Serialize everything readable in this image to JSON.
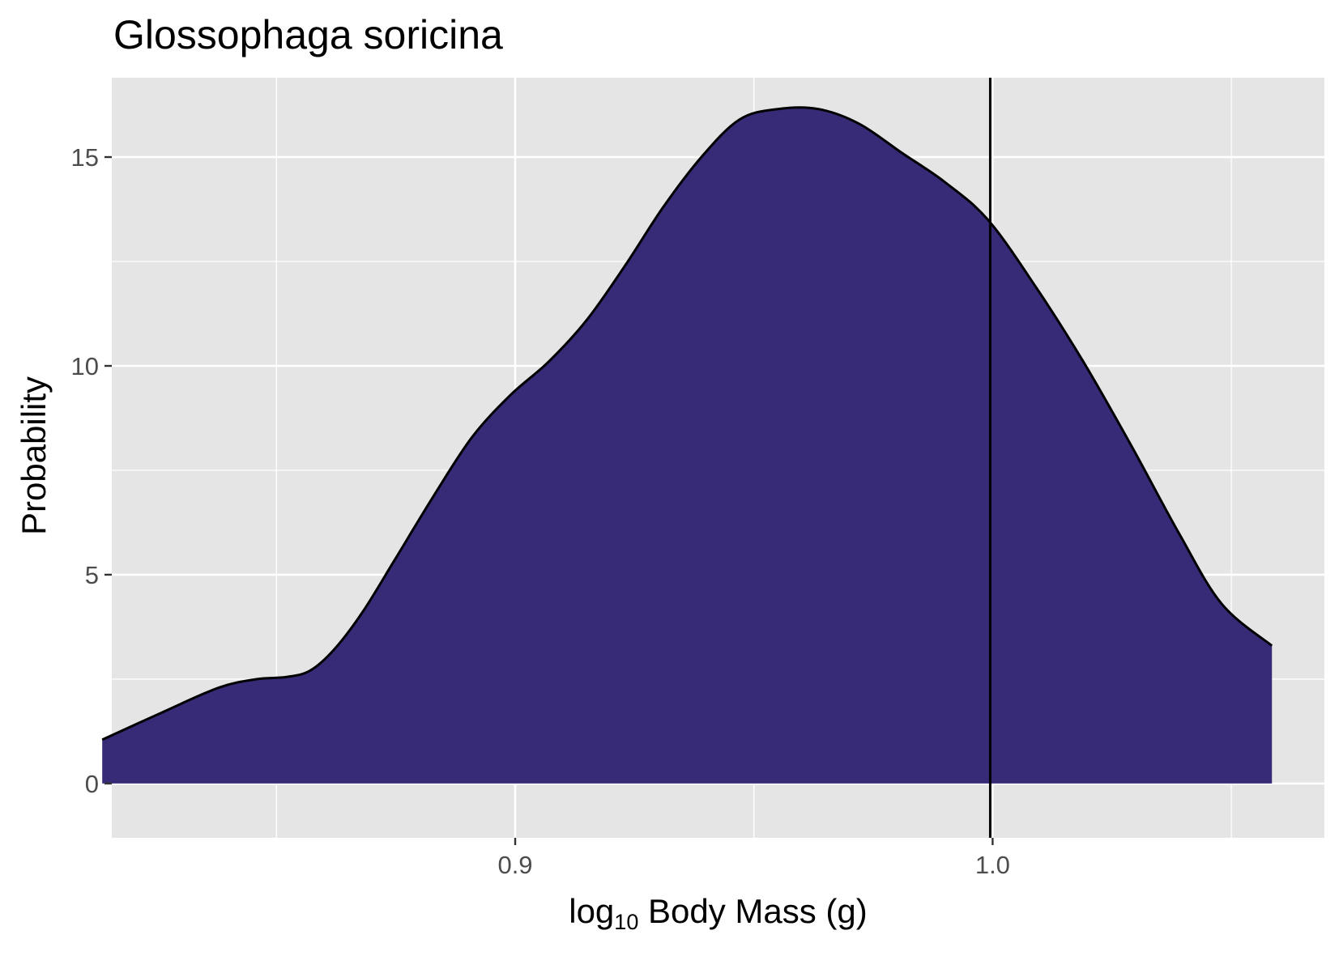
{
  "chart_data": {
    "type": "area",
    "title": "Glossophaga soricina",
    "xlabel": {
      "prefix": "log",
      "subscript": "10",
      "suffix": " Body Mass (g)"
    },
    "ylabel": "Probability",
    "xlim": [
      0.8155,
      1.0695
    ],
    "ylim": [
      -1.3,
      16.9
    ],
    "x_ticks": [
      0.9,
      1.0
    ],
    "x_tick_labels": [
      "0.9",
      "1.0"
    ],
    "y_ticks": [
      0,
      5,
      10,
      15
    ],
    "y_tick_labels": [
      "0",
      "5",
      "10",
      "15"
    ],
    "grid": true,
    "fill_color": "#372a77",
    "line_color": "#000000",
    "panel_color": "#e5e5e5",
    "density": {
      "x": [
        0.8135,
        0.826,
        0.838,
        0.846,
        0.852,
        0.857,
        0.862,
        0.868,
        0.875,
        0.883,
        0.891,
        0.899,
        0.907,
        0.915,
        0.923,
        0.931,
        0.939,
        0.947,
        0.955,
        0.9635,
        0.972,
        0.981,
        0.99,
        0.999,
        1.009,
        1.019,
        1.029,
        1.039,
        1.048,
        1.0585
      ],
      "y": [
        1.05,
        1.7,
        2.3,
        2.5,
        2.55,
        2.7,
        3.2,
        4.1,
        5.4,
        6.9,
        8.3,
        9.3,
        10.1,
        11.1,
        12.4,
        13.8,
        15.0,
        15.9,
        16.15,
        16.15,
        15.8,
        15.1,
        14.4,
        13.5,
        11.9,
        10.1,
        8.1,
        6.0,
        4.3,
        3.3
      ]
    },
    "reference_line_x": 0.9995
  }
}
